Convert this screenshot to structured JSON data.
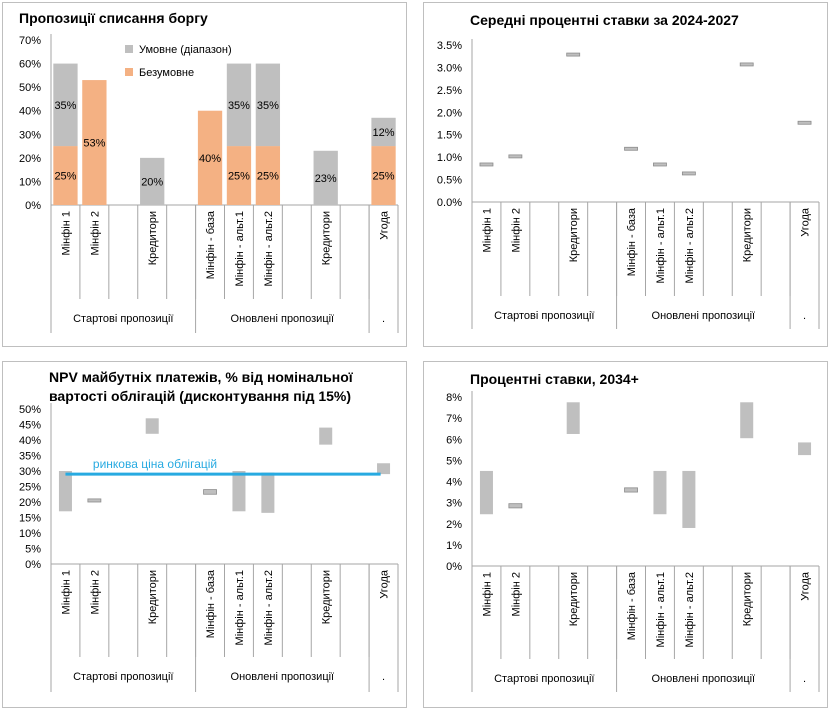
{
  "colors": {
    "unconditional": "#F4B183",
    "conditional": "#BFBFBF",
    "market_line": "#27AAE1",
    "range": "#BFBFBF",
    "axis": "#a6a6a6"
  },
  "chart_data": [
    {
      "id": "debt-writeoff",
      "type": "bar",
      "title": "Пропозиції списання боргу",
      "stacked": true,
      "categories": [
        "Мінфін 1",
        "Мінфін 2",
        "",
        "Кредитори",
        "",
        "Мінфін - база",
        "Мінфін - альт.1",
        "Мінфін - альт.2",
        "",
        "Кредитори",
        "",
        "Угода"
      ],
      "groups": [
        {
          "label": "Стартові пропозиції",
          "span": 5
        },
        {
          "label": "Оновлені пропозиції",
          "span": 6
        },
        {
          "label": ".",
          "span": 1
        }
      ],
      "series": [
        {
          "name": "Безумовне",
          "values": [
            25,
            53,
            null,
            null,
            null,
            40,
            25,
            25,
            null,
            null,
            null,
            25
          ]
        },
        {
          "name": "Умовне (діапазон)",
          "values": [
            35,
            null,
            null,
            20,
            null,
            null,
            35,
            35,
            null,
            23,
            null,
            12
          ]
        }
      ],
      "data_labels": [
        {
          "index": 0,
          "series": 0,
          "text": "25%"
        },
        {
          "index": 0,
          "series": 1,
          "text": "35%"
        },
        {
          "index": 1,
          "series": 0,
          "text": "53%"
        },
        {
          "index": 3,
          "series": 1,
          "text": "20%"
        },
        {
          "index": 5,
          "series": 0,
          "text": "40%"
        },
        {
          "index": 6,
          "series": 0,
          "text": "25%"
        },
        {
          "index": 6,
          "series": 1,
          "text": "35%"
        },
        {
          "index": 7,
          "series": 0,
          "text": "25%"
        },
        {
          "index": 7,
          "series": 1,
          "text": "35%"
        },
        {
          "index": 9,
          "series": 1,
          "text": "23%"
        },
        {
          "index": 11,
          "series": 0,
          "text": "25%"
        },
        {
          "index": 11,
          "series": 1,
          "text": "12%"
        }
      ],
      "legend": [
        "Умовне (діапазон)",
        "Безумовне"
      ],
      "ylim": [
        0,
        70
      ],
      "yticks": [
        0,
        10,
        20,
        30,
        40,
        50,
        60,
        70
      ],
      "ytick_labels": [
        "0%",
        "10%",
        "20%",
        "30%",
        "40%",
        "50%",
        "60%",
        "70%"
      ]
    },
    {
      "id": "avg-rates",
      "type": "range",
      "title": "Середні процентні ставки за 2024-2027",
      "categories": [
        "Мінфін 1",
        "Мінфін 2",
        "",
        "Кредитори",
        "",
        "Мінфін - база",
        "Мінфін - альт.1",
        "Мінфін - альт.2",
        "",
        "Кредитори",
        "",
        "Угода"
      ],
      "groups": [
        {
          "label": "Стартові пропозиції",
          "span": 5
        },
        {
          "label": "Оновлені пропозиції",
          "span": 6
        },
        {
          "label": ".",
          "span": 1
        }
      ],
      "ranges": [
        [
          0.82,
          0.87
        ],
        [
          1.0,
          1.05
        ],
        null,
        [
          3.27,
          3.32
        ],
        null,
        [
          1.17,
          1.22
        ],
        [
          0.82,
          0.87
        ],
        [
          0.62,
          0.67
        ],
        null,
        [
          3.05,
          3.1
        ],
        null,
        [
          1.75,
          1.8
        ]
      ],
      "ylim": [
        0,
        3.5
      ],
      "yticks": [
        0,
        0.5,
        1.0,
        1.5,
        2.0,
        2.5,
        3.0,
        3.5
      ],
      "ytick_labels": [
        "0.0%",
        "0.5%",
        "1.0%",
        "1.5%",
        "2.0%",
        "2.5%",
        "3.0%",
        "3.5%"
      ]
    },
    {
      "id": "npv",
      "type": "range",
      "title": "NPV майбутніх платежів, % від номінальної вартості облігацій (дисконтування під 15%)",
      "title_lines": [
        "NPV майбутніх платежів, % від номінальної",
        "вартості облігацій (дисконтування під 15%)"
      ],
      "categories": [
        "Мінфін 1",
        "Мінфін 2",
        "",
        "Кредитори",
        "",
        "Мінфін - база",
        "Мінфін - альт.1",
        "Мінфін - альт.2",
        "",
        "Кредитори",
        "",
        "Угода"
      ],
      "groups": [
        {
          "label": "Стартові пропозиції",
          "span": 5
        },
        {
          "label": "Оновлені пропозиції",
          "span": 6
        },
        {
          "label": ".",
          "span": 1
        }
      ],
      "ranges": [
        [
          17,
          30
        ],
        [
          20,
          21
        ],
        null,
        [
          42,
          47
        ],
        null,
        [
          22.5,
          24
        ],
        [
          17,
          30
        ],
        [
          16.5,
          29.5
        ],
        null,
        [
          38.5,
          44
        ],
        null,
        [
          29,
          32.5
        ]
      ],
      "reference_line": {
        "label": "ринкова ціна облігацій",
        "value": 29
      },
      "ylim": [
        0,
        50
      ],
      "yticks": [
        0,
        5,
        10,
        15,
        20,
        25,
        30,
        35,
        40,
        45,
        50
      ],
      "ytick_labels": [
        "0%",
        "5%",
        "10%",
        "15%",
        "20%",
        "25%",
        "30%",
        "35%",
        "40%",
        "45%",
        "50%"
      ]
    },
    {
      "id": "rates-2034",
      "type": "range",
      "title": "Процентні ставки, 2034+",
      "categories": [
        "Мінфін 1",
        "Мінфін 2",
        "",
        "Кредитори",
        "",
        "Мінфін - база",
        "Мінфін - альт.1",
        "Мінфін - альт.2",
        "",
        "Кредитори",
        "",
        "Угода"
      ],
      "groups": [
        {
          "label": "Стартові пропозиції",
          "span": 5
        },
        {
          "label": "Оновлені пропозиції",
          "span": 6
        },
        {
          "label": ".",
          "span": 1
        }
      ],
      "ranges": [
        [
          2.45,
          4.5
        ],
        [
          2.75,
          2.95
        ],
        null,
        [
          6.25,
          7.75
        ],
        null,
        [
          3.5,
          3.7
        ],
        [
          2.45,
          4.5
        ],
        [
          1.8,
          4.5
        ],
        null,
        [
          6.05,
          7.75
        ],
        null,
        [
          5.25,
          5.85
        ]
      ],
      "ylim": [
        0,
        8
      ],
      "yticks": [
        0,
        1,
        2,
        3,
        4,
        5,
        6,
        7,
        8
      ],
      "ytick_labels": [
        "0%",
        "1%",
        "2%",
        "3%",
        "4%",
        "5%",
        "6%",
        "7%",
        "8%"
      ]
    }
  ]
}
